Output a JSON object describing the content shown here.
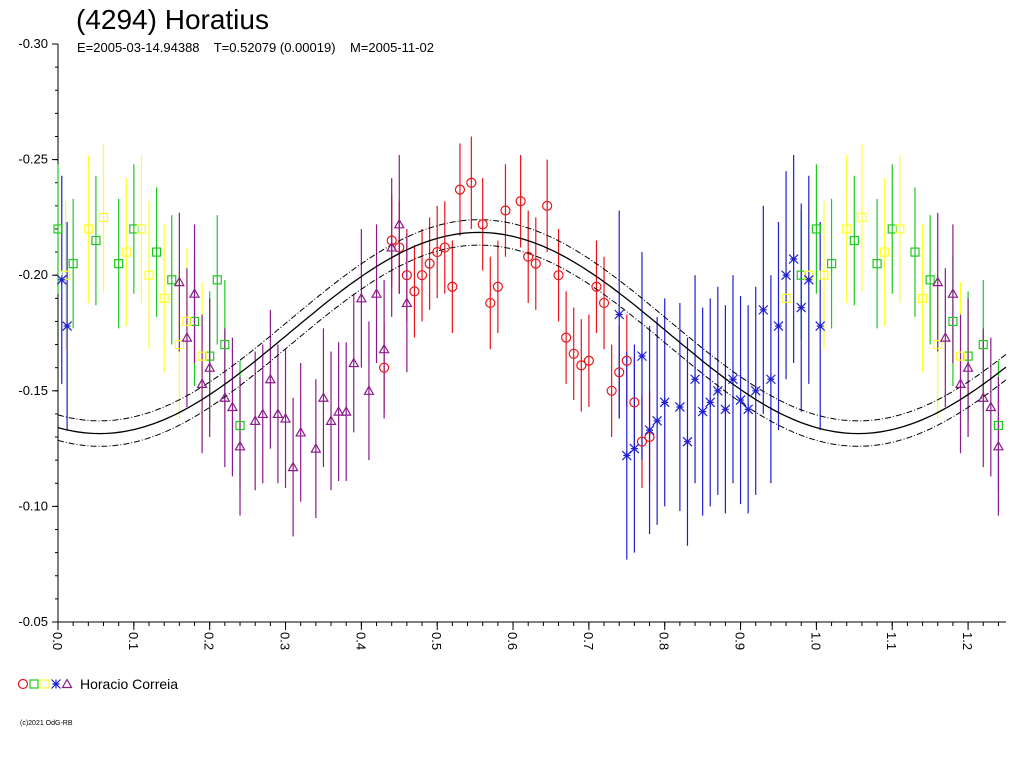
{
  "title": "(4294) Horatius",
  "subtitle": "E=2005-03-14.94388    T=0.52079 (0.00019)    M=2005-11-02",
  "legend_label": "Horacio Correia",
  "credit": "(c)2021 OdG-RB",
  "legend_markers": [
    {
      "shape": "circle",
      "color": "#e8141a"
    },
    {
      "shape": "square",
      "color": "#1ec81e"
    },
    {
      "shape": "square",
      "color": "#ffff28"
    },
    {
      "shape": "star",
      "color": "#1f1fd2"
    },
    {
      "shape": "triangle",
      "color": "#8b1a8b"
    }
  ],
  "chart_data": {
    "type": "scatter",
    "title": "(4294) Horatius",
    "xlim": [
      0,
      1.25
    ],
    "ylim": [
      -0.3,
      -0.05
    ],
    "y_inverted": true,
    "x_ticks": [
      "0.0",
      "0.1",
      "0.2",
      "0.3",
      "0.4",
      "0.5",
      "0.6",
      "0.7",
      "0.8",
      "0.9",
      "1.0",
      "1.1",
      "1.2"
    ],
    "y_ticks": [
      "-0.30",
      "-0.25",
      "-0.20",
      "-0.15",
      "-0.10",
      "-0.05"
    ],
    "fit_curve": {
      "period_fraction": 1.0,
      "mean": -0.175,
      "amp1": 0.0435,
      "phase_max": 0.555,
      "band": 0.0055
    },
    "series": [
      {
        "shape": "square",
        "color": "#1ec81e",
        "err_color": "#1ec81e",
        "points": [
          [
            0.0,
            -0.22
          ],
          [
            0.02,
            -0.205
          ],
          [
            0.05,
            -0.215
          ],
          [
            0.08,
            -0.205
          ],
          [
            0.1,
            -0.22
          ],
          [
            0.13,
            -0.21
          ],
          [
            0.15,
            -0.198
          ],
          [
            0.18,
            -0.18
          ],
          [
            0.2,
            -0.165
          ],
          [
            0.21,
            -0.198
          ],
          [
            0.22,
            -0.17
          ],
          [
            0.24,
            -0.135
          ],
          [
            0.98,
            -0.2
          ],
          [
            1.0,
            -0.22
          ],
          [
            1.02,
            -0.205
          ],
          [
            1.05,
            -0.215
          ],
          [
            1.08,
            -0.205
          ],
          [
            1.1,
            -0.22
          ],
          [
            1.13,
            -0.21
          ],
          [
            1.15,
            -0.198
          ],
          [
            1.18,
            -0.18
          ],
          [
            1.2,
            -0.165
          ],
          [
            1.22,
            -0.17
          ],
          [
            1.24,
            -0.135
          ]
        ],
        "err": 0.028
      },
      {
        "shape": "square",
        "color": "#ffff28",
        "err_color": "#ffff28",
        "points": [
          [
            0.01,
            -0.2
          ],
          [
            0.04,
            -0.22
          ],
          [
            0.06,
            -0.225
          ],
          [
            0.09,
            -0.21
          ],
          [
            0.11,
            -0.22
          ],
          [
            0.12,
            -0.2
          ],
          [
            0.14,
            -0.19
          ],
          [
            0.16,
            -0.17
          ],
          [
            0.17,
            -0.18
          ],
          [
            0.19,
            -0.165
          ],
          [
            0.96,
            -0.19
          ],
          [
            0.99,
            -0.2
          ],
          [
            1.01,
            -0.2
          ],
          [
            1.04,
            -0.22
          ],
          [
            1.06,
            -0.225
          ],
          [
            1.09,
            -0.21
          ],
          [
            1.11,
            -0.22
          ],
          [
            1.14,
            -0.19
          ],
          [
            1.16,
            -0.17
          ],
          [
            1.19,
            -0.165
          ]
        ],
        "err": 0.032
      },
      {
        "shape": "circle",
        "color": "#e8141a",
        "err_color": "#e8141a",
        "points": [
          [
            0.43,
            -0.16
          ],
          [
            0.44,
            -0.215
          ],
          [
            0.45,
            -0.212
          ],
          [
            0.46,
            -0.2
          ],
          [
            0.47,
            -0.193
          ],
          [
            0.48,
            -0.2
          ],
          [
            0.49,
            -0.205
          ],
          [
            0.5,
            -0.21
          ],
          [
            0.51,
            -0.212
          ],
          [
            0.52,
            -0.195
          ],
          [
            0.53,
            -0.237
          ],
          [
            0.545,
            -0.24
          ],
          [
            0.56,
            -0.222
          ],
          [
            0.57,
            -0.188
          ],
          [
            0.58,
            -0.195
          ],
          [
            0.59,
            -0.228
          ],
          [
            0.61,
            -0.232
          ],
          [
            0.62,
            -0.208
          ],
          [
            0.63,
            -0.205
          ],
          [
            0.645,
            -0.23
          ],
          [
            0.66,
            -0.2
          ],
          [
            0.67,
            -0.173
          ],
          [
            0.68,
            -0.166
          ],
          [
            0.69,
            -0.161
          ],
          [
            0.7,
            -0.163
          ],
          [
            0.71,
            -0.195
          ],
          [
            0.72,
            -0.188
          ],
          [
            0.73,
            -0.15
          ],
          [
            0.74,
            -0.158
          ],
          [
            0.75,
            -0.163
          ],
          [
            0.76,
            -0.145
          ],
          [
            0.77,
            -0.128
          ],
          [
            0.78,
            -0.13
          ]
        ],
        "err": 0.02
      },
      {
        "shape": "star",
        "color": "#1f1fd2",
        "err_color": "#1f1fd2",
        "points": [
          [
            0.005,
            -0.198
          ],
          [
            0.012,
            -0.178
          ],
          [
            0.74,
            -0.183
          ],
          [
            0.75,
            -0.122
          ],
          [
            0.76,
            -0.125
          ],
          [
            0.77,
            -0.165
          ],
          [
            0.78,
            -0.133
          ],
          [
            0.79,
            -0.137
          ],
          [
            0.8,
            -0.145
          ],
          [
            0.82,
            -0.143
          ],
          [
            0.83,
            -0.128
          ],
          [
            0.84,
            -0.155
          ],
          [
            0.85,
            -0.141
          ],
          [
            0.86,
            -0.145
          ],
          [
            0.87,
            -0.15
          ],
          [
            0.88,
            -0.142
          ],
          [
            0.89,
            -0.155
          ],
          [
            0.9,
            -0.146
          ],
          [
            0.91,
            -0.142
          ],
          [
            0.92,
            -0.15
          ],
          [
            0.93,
            -0.185
          ],
          [
            0.94,
            -0.155
          ],
          [
            0.95,
            -0.178
          ],
          [
            0.96,
            -0.2
          ],
          [
            0.97,
            -0.207
          ],
          [
            0.98,
            -0.186
          ],
          [
            0.99,
            -0.198
          ],
          [
            1.005,
            -0.178
          ]
        ],
        "err": 0.045
      },
      {
        "shape": "triangle",
        "color": "#8b1a8b",
        "err_color": "#8b1a8b",
        "points": [
          [
            0.16,
            -0.197
          ],
          [
            0.17,
            -0.173
          ],
          [
            0.18,
            -0.192
          ],
          [
            0.19,
            -0.153
          ],
          [
            0.2,
            -0.16
          ],
          [
            0.22,
            -0.147
          ],
          [
            0.23,
            -0.143
          ],
          [
            0.24,
            -0.126
          ],
          [
            0.26,
            -0.137
          ],
          [
            0.27,
            -0.14
          ],
          [
            0.28,
            -0.155
          ],
          [
            0.29,
            -0.14
          ],
          [
            0.3,
            -0.138
          ],
          [
            0.31,
            -0.117
          ],
          [
            0.32,
            -0.132
          ],
          [
            0.34,
            -0.125
          ],
          [
            0.35,
            -0.147
          ],
          [
            0.36,
            -0.137
          ],
          [
            0.37,
            -0.141
          ],
          [
            0.38,
            -0.141
          ],
          [
            0.39,
            -0.162
          ],
          [
            0.4,
            -0.19
          ],
          [
            0.41,
            -0.15
          ],
          [
            0.42,
            -0.192
          ],
          [
            0.43,
            -0.168
          ],
          [
            0.44,
            -0.212
          ],
          [
            0.45,
            -0.222
          ],
          [
            0.46,
            -0.188
          ],
          [
            1.16,
            -0.197
          ],
          [
            1.17,
            -0.173
          ],
          [
            1.18,
            -0.192
          ],
          [
            1.19,
            -0.153
          ],
          [
            1.2,
            -0.16
          ],
          [
            1.22,
            -0.147
          ],
          [
            1.23,
            -0.143
          ],
          [
            1.24,
            -0.126
          ]
        ],
        "err": 0.03
      }
    ]
  }
}
